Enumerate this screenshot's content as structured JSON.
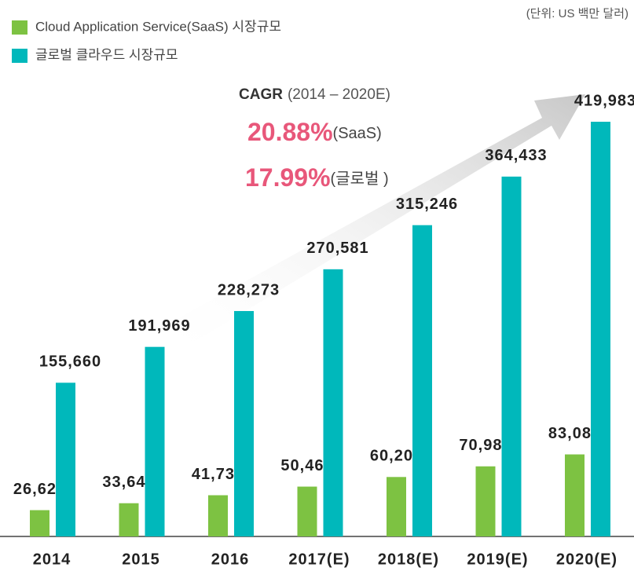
{
  "chart_data": {
    "type": "bar",
    "unit": "(단위: US 백만 달러)",
    "annotations": {
      "cagr": "CAGR",
      "period": "(2014 – 2020E)",
      "saas_rate": "20.88%",
      "saas_name": "(SaaS)",
      "global_rate": "17.99%",
      "global_name": "(글로벌 )"
    },
    "categories": [
      "2014",
      "2015",
      "2016",
      "2017(E)",
      "2018(E)",
      "2019(E)",
      "2020(E)"
    ],
    "series": [
      {
        "name": "Cloud Application Service(SaaS) 시장규모",
        "color": "#7dc242",
        "values": [
          26625,
          33644,
          41738,
          50467,
          60202,
          70988,
          83083
        ],
        "value_labels": [
          "26,625",
          "33,644",
          "41,738",
          "50,467",
          "60,202",
          "70,988",
          "83,083"
        ]
      },
      {
        "name": "글로벌 클라우드 시장규모",
        "color": "#00b8bb",
        "values": [
          155660,
          191969,
          228273,
          270581,
          315246,
          364433,
          419983
        ],
        "value_labels": [
          "155,660",
          "191,969",
          "228,273",
          "270,581",
          "315,246",
          "364,433",
          "419,983"
        ]
      }
    ]
  }
}
